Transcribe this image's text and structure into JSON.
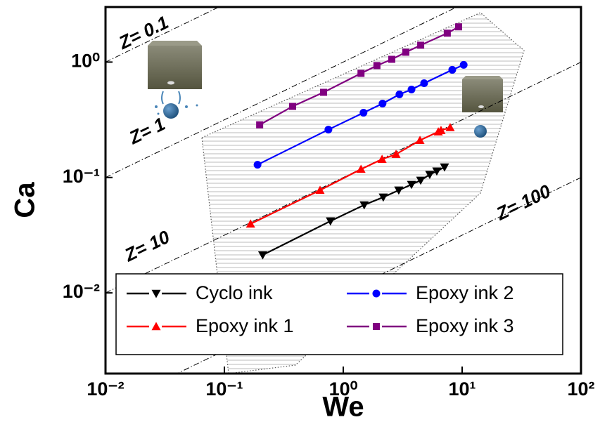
{
  "chart_data": {
    "type": "scatter",
    "x_label": "We",
    "y_label": "Ca",
    "log_x": true,
    "log_y": true,
    "xlim": [
      0.01,
      100
    ],
    "ylim": [
      0.002,
      3
    ],
    "xticks": [
      {
        "value": 0.01,
        "label": "10⁻²"
      },
      {
        "value": 0.1,
        "label": "10⁻¹"
      },
      {
        "value": 1,
        "label": "10⁰"
      },
      {
        "value": 10,
        "label": "10¹"
      },
      {
        "value": 100,
        "label": "10²"
      }
    ],
    "yticks": [
      {
        "value": 0.01,
        "label": "10⁻²"
      },
      {
        "value": 0.1,
        "label": "10⁻¹"
      },
      {
        "value": 1,
        "label": "10⁰"
      }
    ],
    "series": [
      {
        "name": "Cyclo ink",
        "color": "#000000",
        "marker": "triangle-down",
        "x": [
          0.21,
          0.78,
          1.5,
          2.17,
          2.93,
          3.75,
          4.48,
          5.34,
          6.12,
          7.11
        ],
        "values": [
          0.0213,
          0.0419,
          0.0578,
          0.0675,
          0.0776,
          0.0869,
          0.0945,
          0.106,
          0.1135,
          0.123
        ]
      },
      {
        "name": "Epoxy ink 1",
        "color": "#ff0000",
        "marker": "triangle-up",
        "x": [
          0.166,
          0.638,
          1.41,
          2.12,
          2.78,
          4.42,
          6.3,
          6.64,
          7.93
        ],
        "values": [
          0.0396,
          0.0776,
          0.118,
          0.144,
          0.159,
          0.21,
          0.249,
          0.256,
          0.271
        ]
      },
      {
        "name": "Epoxy ink 2",
        "color": "#0000ff",
        "marker": "circle",
        "x": [
          0.19,
          0.75,
          1.48,
          2.14,
          2.97,
          3.75,
          4.79,
          8.26,
          10.3
        ],
        "values": [
          0.129,
          0.26,
          0.364,
          0.437,
          0.525,
          0.578,
          0.656,
          0.857,
          0.946
        ]
      },
      {
        "name": "Epoxy ink 3",
        "color": "#800080",
        "marker": "square",
        "x": [
          0.198,
          0.375,
          0.683,
          1.41,
          1.92,
          2.56,
          3.36,
          4.48,
          7.5,
          9.34
        ],
        "values": [
          0.286,
          0.413,
          0.547,
          0.798,
          0.933,
          1.057,
          1.217,
          1.4,
          1.78,
          2.02
        ]
      }
    ],
    "z_lines": [
      {
        "z": 0.1,
        "label": "Z= 0.1"
      },
      {
        "z": 1,
        "label": "Z= 1"
      },
      {
        "z": 10,
        "label": "Z= 10"
      },
      {
        "z": 100,
        "label": "Z= 100"
      }
    ]
  }
}
